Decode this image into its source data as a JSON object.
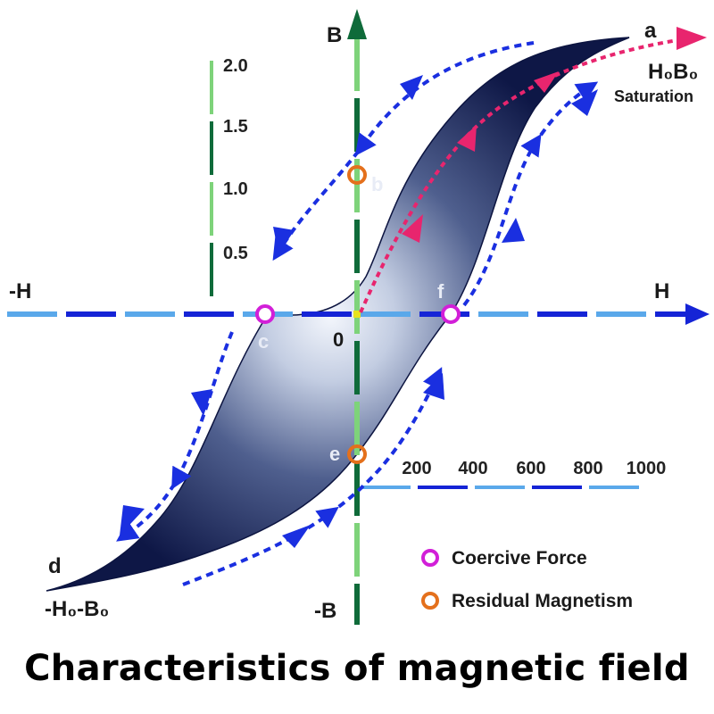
{
  "caption": "Characteristics of magnetic field",
  "axes": {
    "x_label": "H",
    "x_neg_label": "-H",
    "y_label": "B",
    "y_neg_label": "-B",
    "origin_label": "0"
  },
  "b_scale_ticks": [
    "2.0",
    "1.5",
    "1.0",
    "0.5"
  ],
  "h_scale_ticks": [
    "200",
    "400",
    "600",
    "800",
    "1000"
  ],
  "points": {
    "a": {
      "label": "a",
      "sublabel": "H₀B₀",
      "note": "Saturation"
    },
    "b": {
      "label": "b"
    },
    "c": {
      "label": "c"
    },
    "d": {
      "label": "d",
      "sublabel": "-H₀-B₀"
    },
    "e": {
      "label": "e"
    },
    "f": {
      "label": "f"
    }
  },
  "legend": [
    {
      "label": "Coercive Force",
      "color": "#d21fd8"
    },
    {
      "label": "Residual Magnetism",
      "color": "#e4701c"
    }
  ],
  "colors": {
    "loop_dark": "#101a4a",
    "loop_light": "#f2f6fc",
    "axis_dark_green": "#0f6b3a",
    "axis_light_green": "#7ed37a",
    "axis_dark_blue": "#1524d6",
    "axis_light_blue": "#5aa8ea",
    "arrow_blue": "#1a2fe0",
    "arrow_pink": "#e8256e",
    "coercive": "#d21fd8",
    "residual": "#e4701c"
  }
}
